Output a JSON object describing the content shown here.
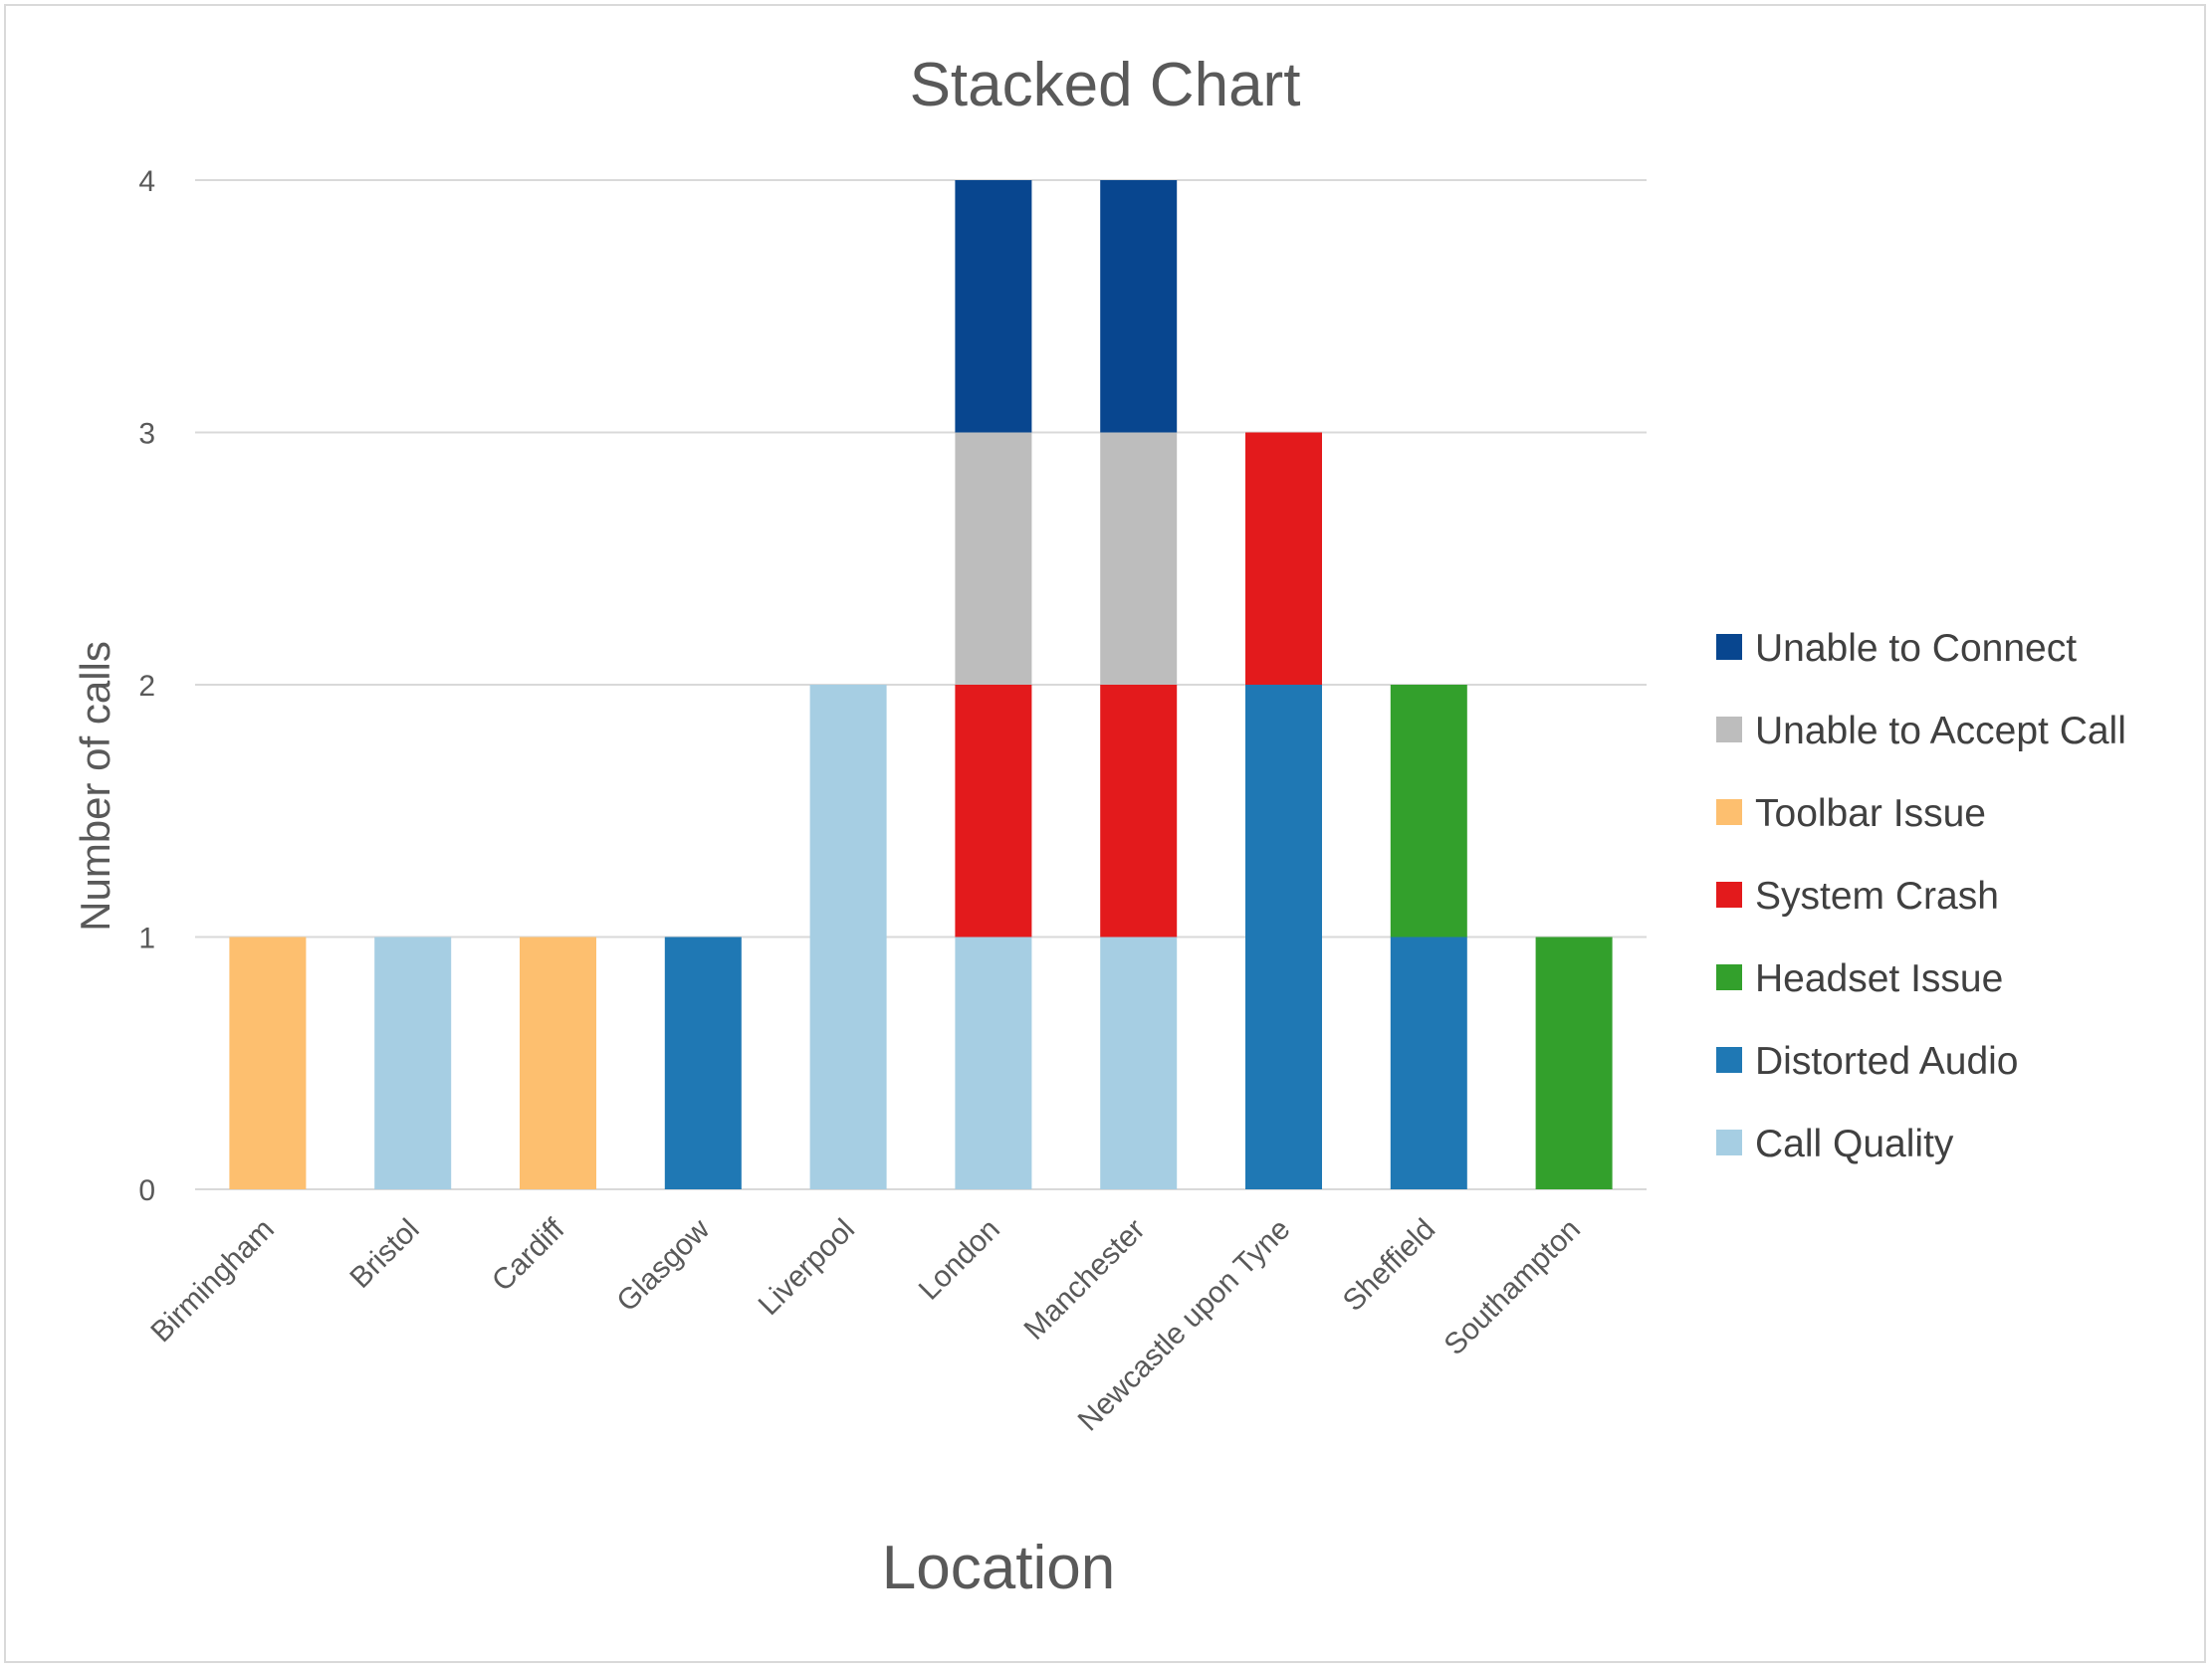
{
  "chart_data": {
    "type": "bar",
    "stacked": true,
    "title": "Stacked Chart",
    "xlabel": "Location",
    "ylabel": "Number of calls",
    "ylim": [
      0,
      4
    ],
    "yticks": [
      "0",
      "1",
      "2",
      "3",
      "4"
    ],
    "grid": true,
    "legend_position": "right",
    "categories": [
      "Birmingham",
      "Bristol",
      "Cardiff",
      "Glasgow",
      "Liverpool",
      "London",
      "Manchester",
      "Newcastle upon Tyne",
      "Sheffield",
      "Southampton"
    ],
    "series": [
      {
        "name": "Call Quality",
        "color": "#a6cee3",
        "values": [
          0,
          1,
          0,
          0,
          2,
          1,
          1,
          0,
          0,
          0
        ]
      },
      {
        "name": "Distorted Audio",
        "color": "#1f78b4",
        "values": [
          0,
          0,
          0,
          1,
          0,
          0,
          0,
          2,
          1,
          0
        ]
      },
      {
        "name": "Headset Issue",
        "color": "#33a02c",
        "values": [
          0,
          0,
          0,
          0,
          0,
          0,
          0,
          0,
          1,
          1
        ]
      },
      {
        "name": "System Crash",
        "color": "#e31a1c",
        "values": [
          0,
          0,
          0,
          0,
          0,
          1,
          1,
          1,
          0,
          0
        ]
      },
      {
        "name": "Toolbar Issue",
        "color": "#fdbf6f",
        "values": [
          1,
          0,
          1,
          0,
          0,
          0,
          0,
          0,
          0,
          0
        ]
      },
      {
        "name": "Unable to Accept Call",
        "color": "#bdbdbd",
        "values": [
          0,
          0,
          0,
          0,
          0,
          1,
          1,
          0,
          0,
          0
        ]
      },
      {
        "name": "Unable to Connect",
        "color": "#08468f",
        "values": [
          0,
          0,
          0,
          0,
          0,
          1,
          1,
          0,
          0,
          0
        ]
      }
    ]
  }
}
